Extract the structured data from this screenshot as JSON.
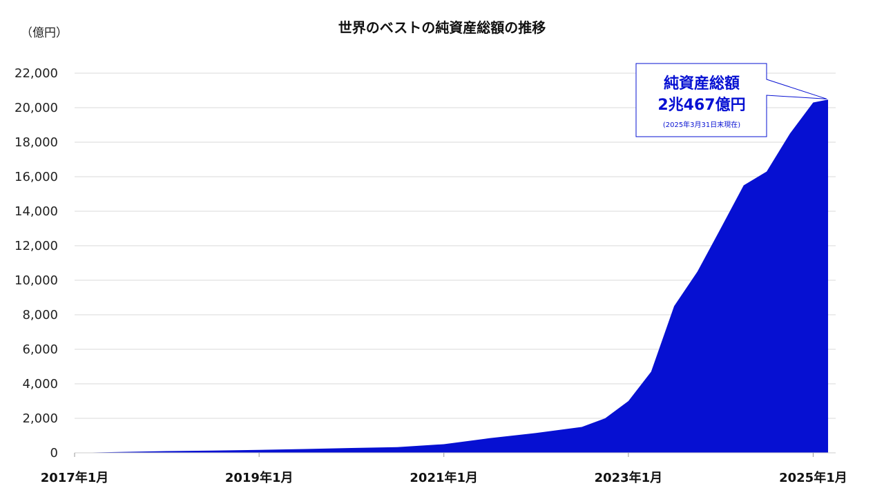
{
  "chart_data": {
    "type": "area",
    "title": "世界のベストの純資産総額の推移",
    "ylabel": "（億円）",
    "xlabel": "",
    "ylim": [
      0,
      22000
    ],
    "yticks": [
      0,
      2000,
      4000,
      6000,
      8000,
      10000,
      12000,
      14000,
      16000,
      18000,
      20000,
      22000
    ],
    "ytick_labels": [
      "0",
      "2,000",
      "4,000",
      "6,000",
      "8,000",
      "10,000",
      "12,000",
      "14,000",
      "16,000",
      "18,000",
      "20,000",
      "22,000"
    ],
    "xticks": [
      "2017-01",
      "2019-01",
      "2021-01",
      "2023-01",
      "2025-01"
    ],
    "xtick_labels": [
      "2017年1月",
      "2019年1月",
      "2021年1月",
      "2023年1月",
      "2025年1月"
    ],
    "grid": true,
    "color": "#0610d2",
    "series": [
      {
        "x": [
          "2017-01",
          "2017-07",
          "2018-01",
          "2018-07",
          "2019-01",
          "2019-07",
          "2020-01",
          "2020-07",
          "2021-01",
          "2021-07",
          "2022-01",
          "2022-07",
          "2022-10",
          "2023-01",
          "2023-04",
          "2023-07",
          "2023-10",
          "2024-01",
          "2024-04",
          "2024-07",
          "2024-10",
          "2025-01",
          "2025-03"
        ],
        "values": [
          0,
          50,
          100,
          130,
          170,
          220,
          280,
          330,
          500,
          850,
          1150,
          1500,
          2000,
          3000,
          4700,
          8500,
          10500,
          13000,
          15500,
          16300,
          18500,
          20300,
          20467
        ]
      }
    ],
    "annotation": {
      "line1": "純資産総額",
      "line2": "2兆467億円",
      "line3": "(2025年3月31日末現在)"
    }
  }
}
